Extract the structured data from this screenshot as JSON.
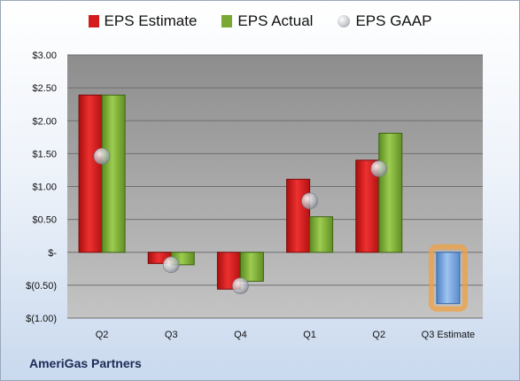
{
  "company": "AmeriGas Partners",
  "legend": {
    "estimate": "EPS Estimate",
    "actual": "EPS Actual",
    "gaap": "EPS GAAP"
  },
  "colors": {
    "estimate": "#d41a1a",
    "actual": "#7aa832",
    "gaap": "#b9bdc4",
    "future_estimate": "#6f9fd8",
    "future_glow": "#f0a040"
  },
  "chart_data": {
    "type": "bar",
    "categories": [
      "Q2",
      "Q3",
      "Q4",
      "Q1",
      "Q2",
      "Q3 Estimate"
    ],
    "ylim": [
      -1.0,
      3.0
    ],
    "yticks": [
      -1.0,
      -0.5,
      0,
      0.5,
      1.0,
      1.5,
      2.0,
      2.5,
      3.0
    ],
    "ytick_labels": [
      "$(1.00)",
      "$(0.50)",
      "$-",
      "$0.50",
      "$1.00",
      "$1.50",
      "$2.00",
      "$2.50",
      "$3.00"
    ],
    "grid": true,
    "legend_position": "top",
    "series": [
      {
        "name": "EPS Estimate",
        "values": [
          2.39,
          -0.17,
          -0.56,
          1.11,
          1.4,
          -0.78
        ]
      },
      {
        "name": "EPS Actual",
        "values": [
          2.39,
          -0.19,
          -0.44,
          0.54,
          1.81,
          null
        ]
      },
      {
        "name": "EPS GAAP",
        "values": [
          1.46,
          -0.19,
          -0.51,
          0.78,
          1.27,
          null
        ]
      }
    ]
  }
}
